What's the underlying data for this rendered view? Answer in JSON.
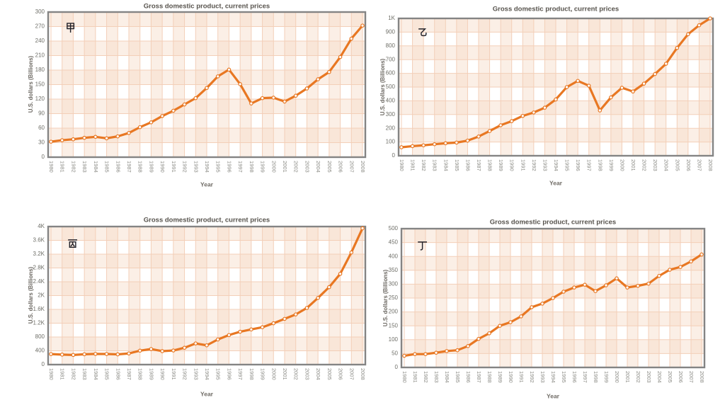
{
  "years": [
    "1980",
    "1981",
    "1982",
    "1983",
    "1984",
    "1985",
    "1986",
    "1987",
    "1988",
    "1989",
    "1990",
    "1991",
    "1992",
    "1993",
    "1994",
    "1995",
    "1996",
    "1997",
    "1998",
    "1999",
    "2000",
    "2001",
    "2002",
    "2003",
    "2004",
    "2005",
    "2006",
    "2007",
    "2008"
  ],
  "style": {
    "line_color": "#e87722",
    "marker_fill": "#ffffff",
    "grid_color": "#f3cfb8",
    "band_color": "#f7dcc8",
    "border_color": "#848484",
    "title_color": "#57534d",
    "tick_color": "#8b8b85",
    "ytick_color": "#6f6f68",
    "axis_label_color": "#6e6a64",
    "glyph_color": "#22222a",
    "background": "#ffffff"
  },
  "chart_data": [
    {
      "type": "line",
      "label": "甲",
      "title": "Gross domestic product, current prices",
      "xlabel": "Year",
      "ylabel": "U.S. dollars (Billions)",
      "ylim": [
        0,
        300
      ],
      "ytick_labels": [
        "300",
        "270",
        "240",
        "210",
        "180",
        "150",
        "120",
        "90",
        "60",
        "30",
        "0"
      ],
      "grid": true,
      "legend_position": "none",
      "values": [
        32,
        35,
        37,
        40,
        42,
        39,
        43,
        50,
        62,
        72,
        85,
        96,
        109,
        122,
        143,
        167,
        181,
        151,
        111,
        122,
        123,
        115,
        127,
        142,
        161,
        176,
        207,
        245,
        272
      ]
    },
    {
      "type": "line",
      "label": "乙",
      "title": "Gross domestic product, current prices",
      "xlabel": "Year",
      "ylabel": "U.S. dollars (Billions)",
      "ylim": [
        0,
        1000
      ],
      "ytick_labels": [
        "1K",
        "900",
        "800",
        "700",
        "600",
        "500",
        "400",
        "300",
        "200",
        "100",
        "0"
      ],
      "grid": true,
      "legend_position": "none",
      "values": [
        62,
        70,
        76,
        84,
        91,
        96,
        110,
        140,
        180,
        222,
        252,
        290,
        315,
        350,
        410,
        500,
        545,
        510,
        330,
        425,
        495,
        468,
        525,
        595,
        670,
        785,
        885,
        950,
        1000
      ]
    },
    {
      "type": "line",
      "label": "丙",
      "title": "Gross domestic product, current prices",
      "xlabel": "Year",
      "ylabel": "U.S. dollars (Billions)",
      "ylim": [
        0,
        4000
      ],
      "ytick_labels": [
        "4K",
        "3.6K",
        "3.2K",
        "2.8K",
        "2.4K",
        "2K",
        "1.6K",
        "1.2K",
        "800",
        "400",
        "0"
      ],
      "grid": true,
      "legend_position": "none",
      "values": [
        305,
        290,
        280,
        300,
        310,
        307,
        298,
        323,
        404,
        451,
        390,
        409,
        488,
        613,
        559,
        728,
        856,
        953,
        1019,
        1083,
        1198,
        1325,
        1454,
        1641,
        1932,
        2244,
        2630,
        3250,
        3950
      ]
    },
    {
      "type": "line",
      "label": "丁",
      "title": "Gross domestic product, current prices",
      "xlabel": "Year",
      "ylabel": "U.S. dollars (Billions)",
      "ylim": [
        0,
        500
      ],
      "ytick_labels": [
        "500",
        "450",
        "400",
        "350",
        "300",
        "250",
        "200",
        "150",
        "100",
        "50",
        "0"
      ],
      "grid": true,
      "legend_position": "none",
      "values": [
        42,
        48,
        48,
        53,
        59,
        62,
        77,
        103,
        123,
        150,
        163,
        184,
        217,
        230,
        250,
        273,
        288,
        298,
        275,
        296,
        321,
        288,
        294,
        302,
        330,
        352,
        362,
        382,
        407
      ]
    }
  ]
}
